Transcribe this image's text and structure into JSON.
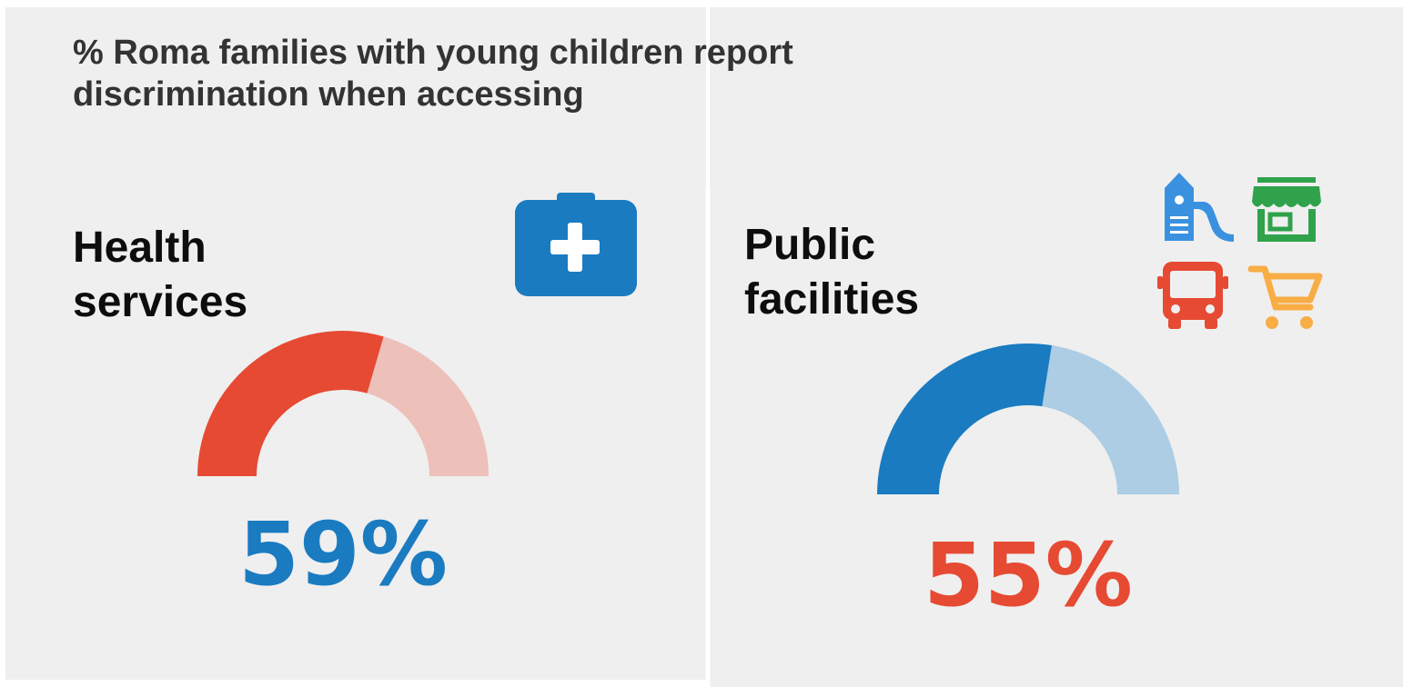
{
  "chart_data": {
    "type": "gauge",
    "title_lines": [
      "% Roma families with young children report",
      "discrimination when accessing"
    ],
    "unit": "%",
    "ylim": [
      0,
      100
    ],
    "gauges": [
      {
        "label_lines": [
          "Health",
          "services"
        ],
        "value": 59,
        "value_label": "59%",
        "fill_color": "#e64a33",
        "remainder_color": "#edc0b9",
        "value_text_color": "#1a7bc1",
        "icon": "medical-kit-icon"
      },
      {
        "label_lines": [
          "Public",
          "facilities"
        ],
        "value": 55,
        "value_label": "55%",
        "fill_color": "#1a7bc1",
        "remainder_color": "#accde3",
        "value_text_color": "#e64a33",
        "icons": [
          "playground-slide-icon",
          "shop-icon",
          "bus-icon",
          "shopping-cart-icon"
        ]
      }
    ]
  },
  "colors": {
    "medical_kit": "#1a7bc1",
    "playground": "#3a91df",
    "shop": "#2fa24b",
    "bus": "#e64a33",
    "cart": "#f8ad45"
  }
}
